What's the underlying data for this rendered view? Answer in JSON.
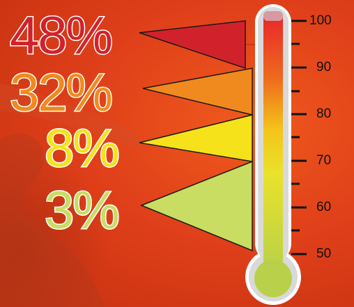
{
  "bands": [
    {
      "label": "48%",
      "color": "#d1222b"
    },
    {
      "label": "32%",
      "color": "#f08a1e"
    },
    {
      "label": "8%",
      "color": "#f5e21a"
    },
    {
      "label": "3%",
      "color": "#c8dd62"
    }
  ],
  "scale": {
    "ticks": [
      "100",
      "90",
      "80",
      "70",
      "60",
      "50"
    ]
  },
  "colors": {
    "background": "#e0401a",
    "thermometer_top": "#e8262b",
    "thermometer_bottom": "#b9d14a",
    "text_outline": "#ffffff"
  }
}
